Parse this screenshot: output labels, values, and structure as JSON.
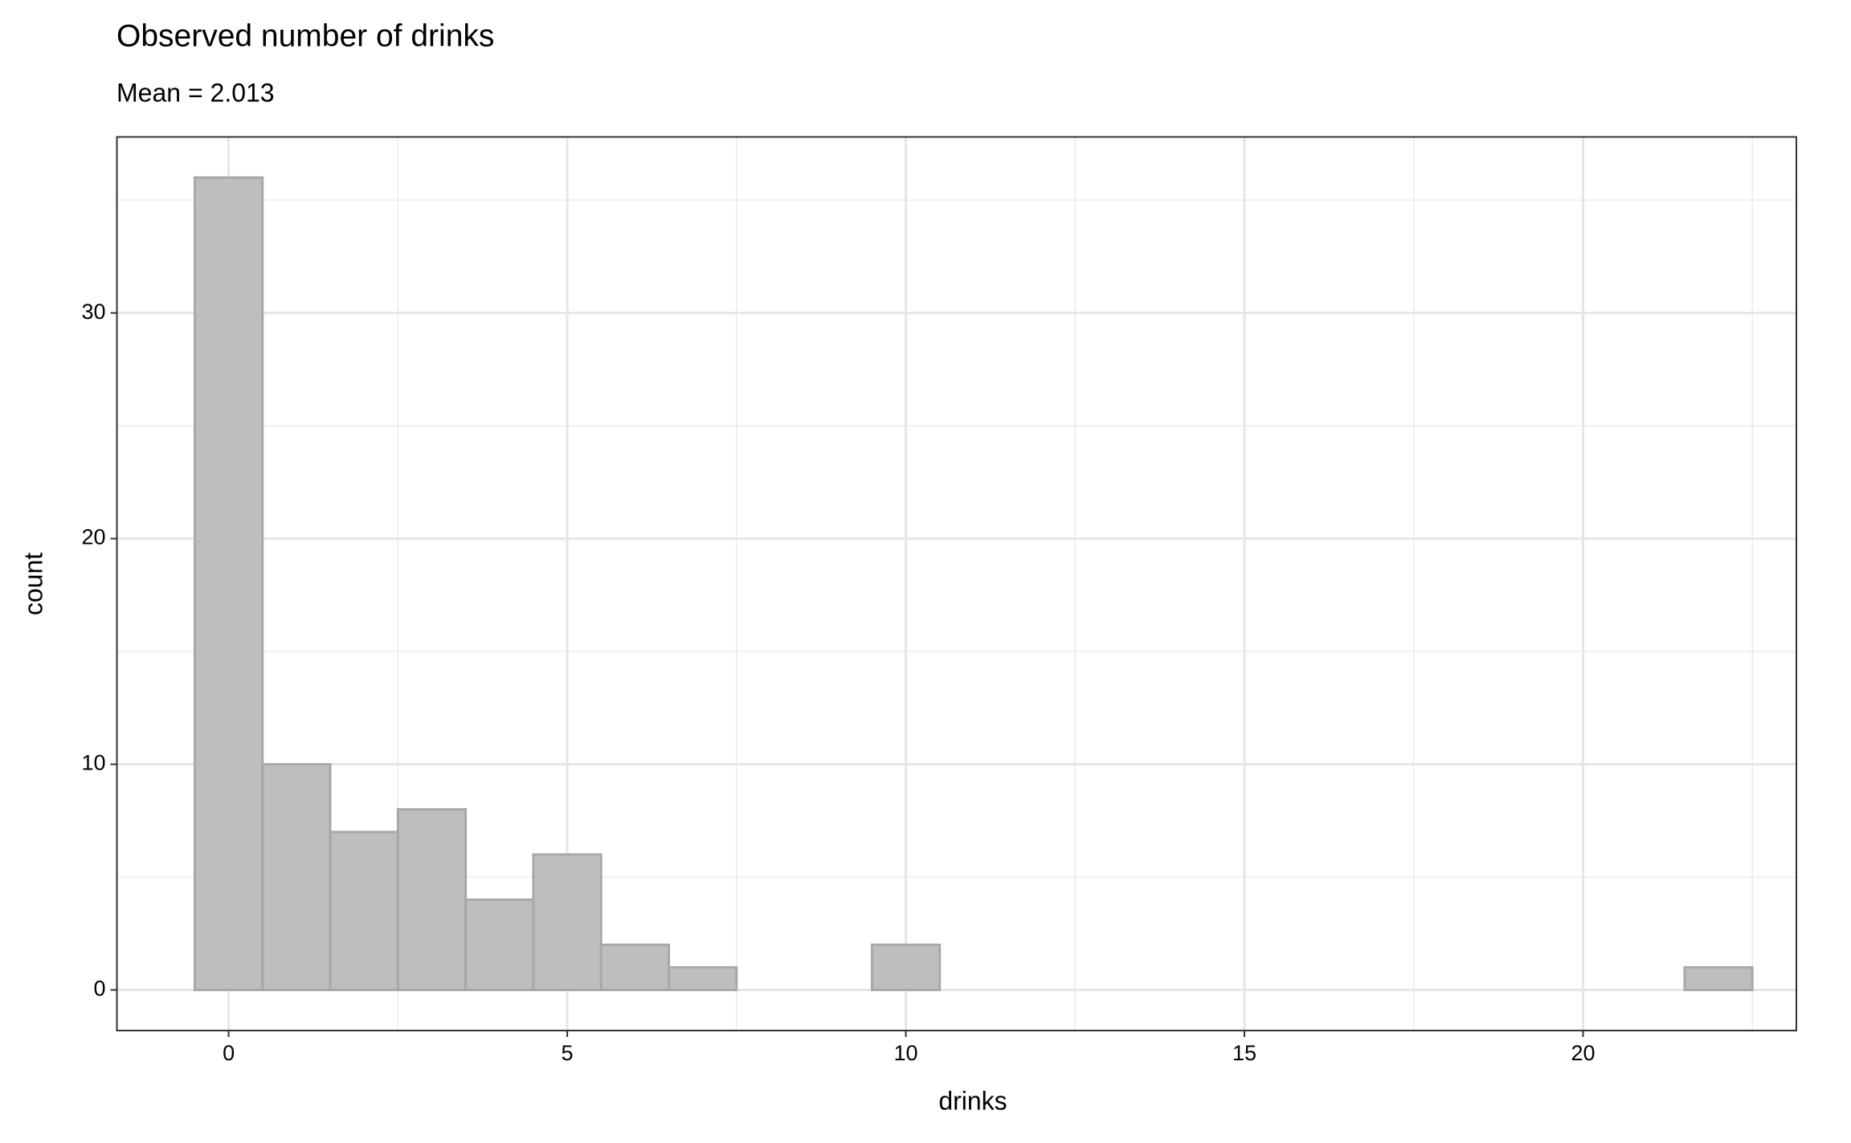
{
  "chart_data": {
    "type": "histogram",
    "title": "Observed number of drinks",
    "subtitle": "Mean = 2.013",
    "x_label": "drinks",
    "y_label": "count",
    "bins": [
      -0.5,
      0.5,
      1.5,
      2.5,
      3.5,
      4.5,
      5.5,
      6.5,
      7.5,
      8.5,
      9.5,
      10.5,
      11.5,
      12.5,
      13.5,
      14.5,
      15.5,
      16.5,
      17.5,
      18.5,
      19.5,
      20.5,
      21.5,
      22.5
    ],
    "values": [
      36,
      10,
      7,
      8,
      4,
      6,
      2,
      1,
      0,
      0,
      2,
      0,
      0,
      0,
      0,
      0,
      0,
      0,
      0,
      0,
      0,
      0,
      1
    ],
    "color": "#bebebe",
    "edge_color": "#a8a8a8",
    "xlim": [
      -1.65,
      23.15
    ],
    "ylim": [
      -1.8,
      37.8
    ],
    "xticks": [
      0,
      5,
      10,
      15,
      20
    ],
    "yticks": [
      0,
      10,
      20,
      30
    ],
    "grid": true
  }
}
